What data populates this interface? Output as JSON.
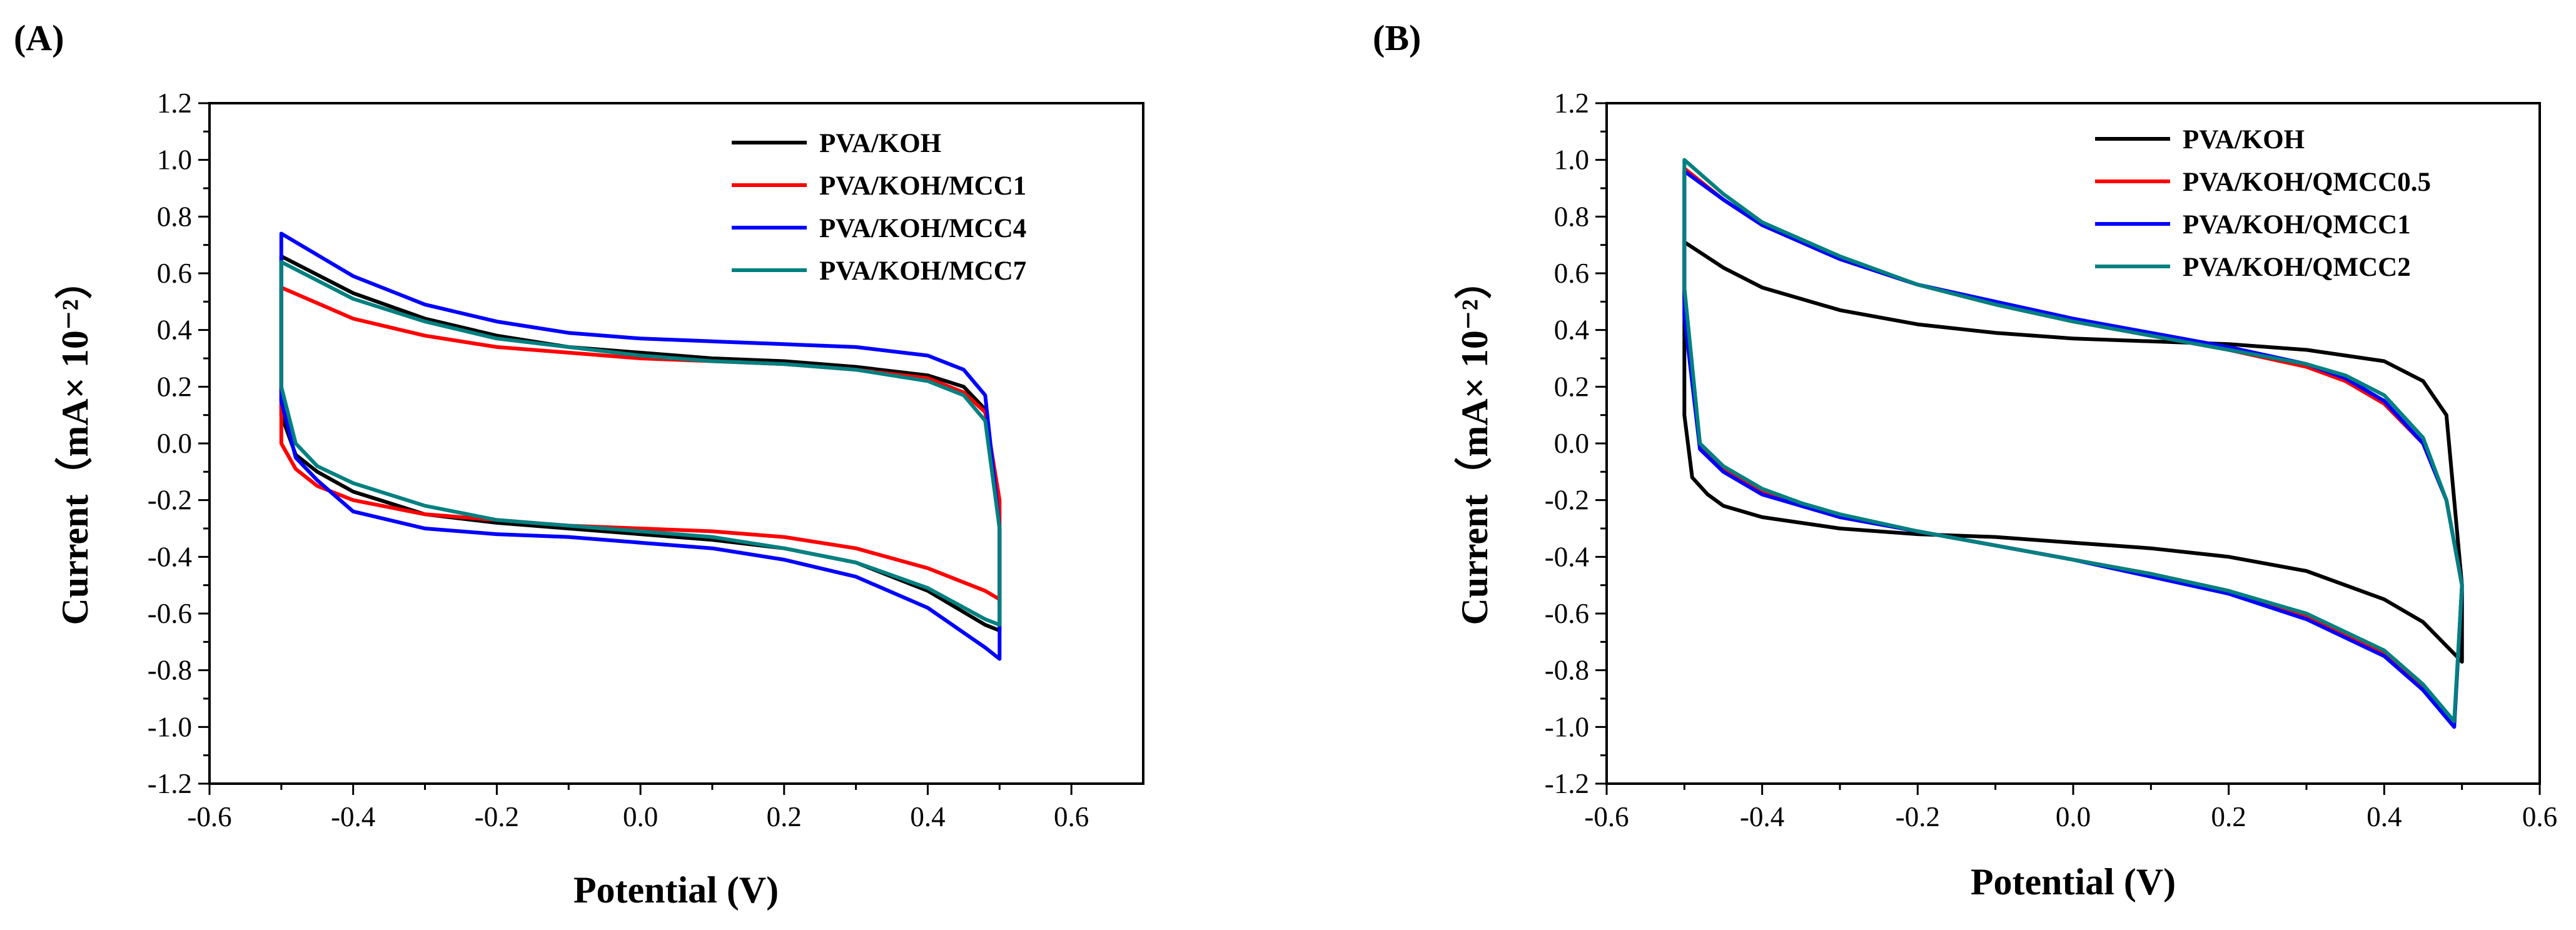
{
  "chart_data": [
    {
      "type": "line",
      "panel_label": "(A)",
      "xlabel": "Potential (V)",
      "ylabel": "Current（mA× 10⁻²）",
      "xlim": [
        -0.6,
        0.7
      ],
      "ylim": [
        -1.2,
        1.2
      ],
      "x_ticks": [
        -0.6,
        -0.4,
        -0.2,
        0.0,
        0.2,
        0.4,
        0.6
      ],
      "x_tick_labels": [
        "-0.6",
        "-0.4",
        "-0.2",
        "0.0",
        "0.2",
        "0.4",
        "0.6"
      ],
      "y_ticks": [
        1.2,
        1.0,
        0.8,
        0.6,
        0.4,
        0.2,
        0.0,
        -0.2,
        -0.4,
        -0.6,
        -0.8,
        -1.0,
        -1.2
      ],
      "y_tick_labels": [
        "1.2",
        "1.0",
        "0.8",
        "0.6",
        "0.4",
        "0.2",
        "0.0",
        "-0.2",
        "-0.4",
        "-0.6",
        "-0.8",
        "-1.0",
        "-1.2"
      ],
      "legend_position": "top-right",
      "series": [
        {
          "name": "PVA/KOH",
          "color": "#000000",
          "upper": {
            "x": [
              -0.5,
              -0.4,
              -0.3,
              -0.2,
              -0.1,
              0.0,
              0.1,
              0.2,
              0.3,
              0.4,
              0.45,
              0.48,
              0.5
            ],
            "y": [
              0.66,
              0.53,
              0.44,
              0.38,
              0.34,
              0.32,
              0.3,
              0.29,
              0.27,
              0.24,
              0.2,
              0.12,
              -0.3
            ]
          },
          "lower": {
            "x": [
              -0.5,
              -0.48,
              -0.45,
              -0.4,
              -0.3,
              -0.2,
              -0.1,
              0.0,
              0.1,
              0.2,
              0.3,
              0.4,
              0.48,
              0.5
            ],
            "y": [
              0.1,
              -0.04,
              -0.1,
              -0.17,
              -0.25,
              -0.28,
              -0.3,
              -0.32,
              -0.34,
              -0.37,
              -0.42,
              -0.52,
              -0.64,
              -0.66
            ]
          }
        },
        {
          "name": "PVA/KOH/MCC1",
          "color": "#ff0000",
          "upper": {
            "x": [
              -0.5,
              -0.4,
              -0.3,
              -0.2,
              -0.1,
              0.0,
              0.1,
              0.2,
              0.3,
              0.4,
              0.45,
              0.48,
              0.5
            ],
            "y": [
              0.55,
              0.44,
              0.38,
              0.34,
              0.32,
              0.3,
              0.29,
              0.28,
              0.26,
              0.23,
              0.18,
              0.11,
              -0.2
            ]
          },
          "lower": {
            "x": [
              -0.5,
              -0.48,
              -0.45,
              -0.4,
              -0.3,
              -0.2,
              -0.1,
              0.0,
              0.1,
              0.2,
              0.3,
              0.4,
              0.48,
              0.5
            ],
            "y": [
              0.0,
              -0.09,
              -0.15,
              -0.2,
              -0.25,
              -0.27,
              -0.29,
              -0.3,
              -0.31,
              -0.33,
              -0.37,
              -0.44,
              -0.52,
              -0.55
            ]
          }
        },
        {
          "name": "PVA/KOH/MCC4",
          "color": "#0000ff",
          "upper": {
            "x": [
              -0.5,
              -0.4,
              -0.3,
              -0.2,
              -0.1,
              0.0,
              0.1,
              0.2,
              0.3,
              0.4,
              0.45,
              0.48,
              0.5
            ],
            "y": [
              0.74,
              0.59,
              0.49,
              0.43,
              0.39,
              0.37,
              0.36,
              0.35,
              0.34,
              0.31,
              0.26,
              0.17,
              -0.3
            ]
          },
          "lower": {
            "x": [
              -0.5,
              -0.48,
              -0.45,
              -0.4,
              -0.3,
              -0.2,
              -0.1,
              0.0,
              0.1,
              0.2,
              0.3,
              0.4,
              0.48,
              0.5
            ],
            "y": [
              0.15,
              -0.05,
              -0.13,
              -0.24,
              -0.3,
              -0.32,
              -0.33,
              -0.35,
              -0.37,
              -0.41,
              -0.47,
              -0.58,
              -0.72,
              -0.76
            ]
          }
        },
        {
          "name": "PVA/KOH/MCC7",
          "color": "#008080",
          "upper": {
            "x": [
              -0.5,
              -0.4,
              -0.3,
              -0.2,
              -0.1,
              0.0,
              0.1,
              0.2,
              0.3,
              0.4,
              0.45,
              0.48,
              0.5
            ],
            "y": [
              0.64,
              0.51,
              0.43,
              0.37,
              0.34,
              0.31,
              0.29,
              0.28,
              0.26,
              0.22,
              0.17,
              0.08,
              -0.3
            ]
          },
          "lower": {
            "x": [
              -0.5,
              -0.48,
              -0.45,
              -0.4,
              -0.3,
              -0.2,
              -0.1,
              0.0,
              0.1,
              0.2,
              0.3,
              0.4,
              0.48,
              0.5
            ],
            "y": [
              0.2,
              0.0,
              -0.08,
              -0.14,
              -0.22,
              -0.27,
              -0.29,
              -0.31,
              -0.33,
              -0.37,
              -0.42,
              -0.51,
              -0.62,
              -0.64
            ]
          }
        }
      ]
    },
    {
      "type": "line",
      "panel_label": "(B)",
      "xlabel": "Potential (V)",
      "ylabel": "Current（mA× 10⁻²）",
      "xlim": [
        -0.6,
        0.6
      ],
      "ylim": [
        -1.2,
        1.2
      ],
      "x_ticks": [
        -0.6,
        -0.4,
        -0.2,
        0.0,
        0.2,
        0.4,
        0.6
      ],
      "x_tick_labels": [
        "-0.6",
        "-0.4",
        "-0.2",
        "0.0",
        "0.2",
        "0.4",
        "0.6"
      ],
      "y_ticks": [
        1.2,
        1.0,
        0.8,
        0.6,
        0.4,
        0.2,
        0.0,
        -0.2,
        -0.4,
        -0.6,
        -0.8,
        -1.0,
        -1.2
      ],
      "y_tick_labels": [
        "1.2",
        "1.0",
        "0.8",
        "0.6",
        "0.4",
        "0.2",
        "0.0",
        "-0.2",
        "-0.4",
        "-0.6",
        "-0.8",
        "-1.0",
        "-1.2"
      ],
      "legend_position": "top-right",
      "series": [
        {
          "name": "PVA/KOH",
          "color": "#000000",
          "upper": {
            "x": [
              -0.5,
              -0.45,
              -0.4,
              -0.3,
              -0.2,
              -0.1,
              0.0,
              0.1,
              0.2,
              0.3,
              0.4,
              0.45,
              0.48,
              0.5
            ],
            "y": [
              0.71,
              0.62,
              0.55,
              0.47,
              0.42,
              0.39,
              0.37,
              0.36,
              0.35,
              0.33,
              0.29,
              0.22,
              0.1,
              -0.5
            ]
          },
          "lower": {
            "x": [
              -0.5,
              -0.49,
              -0.47,
              -0.45,
              -0.4,
              -0.3,
              -0.2,
              -0.1,
              0.0,
              0.1,
              0.2,
              0.3,
              0.4,
              0.45,
              0.5
            ],
            "y": [
              0.1,
              -0.12,
              -0.18,
              -0.22,
              -0.26,
              -0.3,
              -0.32,
              -0.33,
              -0.35,
              -0.37,
              -0.4,
              -0.45,
              -0.55,
              -0.63,
              -0.77
            ]
          }
        },
        {
          "name": "PVA/KOH/QMCC0.5",
          "color": "#ff0000",
          "upper": {
            "x": [
              -0.5,
              -0.45,
              -0.4,
              -0.3,
              -0.2,
              -0.1,
              0.0,
              0.1,
              0.2,
              0.3,
              0.35,
              0.4,
              0.45,
              0.48,
              0.5
            ],
            "y": [
              0.97,
              0.86,
              0.77,
              0.65,
              0.56,
              0.49,
              0.43,
              0.38,
              0.33,
              0.27,
              0.22,
              0.14,
              0.0,
              -0.2,
              -0.5
            ]
          },
          "lower": {
            "x": [
              -0.5,
              -0.48,
              -0.45,
              -0.4,
              -0.35,
              -0.3,
              -0.2,
              -0.1,
              0.0,
              0.1,
              0.2,
              0.3,
              0.4,
              0.45,
              0.49
            ],
            "y": [
              0.5,
              0.0,
              -0.09,
              -0.17,
              -0.22,
              -0.26,
              -0.31,
              -0.36,
              -0.41,
              -0.46,
              -0.52,
              -0.61,
              -0.74,
              -0.86,
              -1.0
            ]
          }
        },
        {
          "name": "PVA/KOH/QMCC1",
          "color": "#0000ff",
          "upper": {
            "x": [
              -0.5,
              -0.45,
              -0.4,
              -0.3,
              -0.2,
              -0.1,
              0.0,
              0.1,
              0.2,
              0.3,
              0.35,
              0.4,
              0.45,
              0.48,
              0.5
            ],
            "y": [
              0.96,
              0.86,
              0.77,
              0.65,
              0.56,
              0.5,
              0.44,
              0.39,
              0.34,
              0.28,
              0.23,
              0.15,
              0.0,
              -0.2,
              -0.5
            ]
          },
          "lower": {
            "x": [
              -0.5,
              -0.48,
              -0.45,
              -0.4,
              -0.35,
              -0.3,
              -0.2,
              -0.1,
              0.0,
              0.1,
              0.2,
              0.3,
              0.4,
              0.45,
              0.49
            ],
            "y": [
              0.45,
              -0.02,
              -0.1,
              -0.18,
              -0.22,
              -0.26,
              -0.31,
              -0.36,
              -0.41,
              -0.47,
              -0.53,
              -0.62,
              -0.75,
              -0.87,
              -1.0
            ]
          }
        },
        {
          "name": "PVA/KOH/QMCC2",
          "color": "#008080",
          "upper": {
            "x": [
              -0.5,
              -0.45,
              -0.4,
              -0.3,
              -0.2,
              -0.1,
              0.0,
              0.1,
              0.2,
              0.3,
              0.35,
              0.4,
              0.45,
              0.48,
              0.5
            ],
            "y": [
              1.0,
              0.88,
              0.78,
              0.66,
              0.56,
              0.49,
              0.43,
              0.38,
              0.33,
              0.28,
              0.24,
              0.17,
              0.02,
              -0.2,
              -0.5
            ]
          },
          "lower": {
            "x": [
              -0.5,
              -0.48,
              -0.45,
              -0.4,
              -0.35,
              -0.3,
              -0.2,
              -0.1,
              0.0,
              0.1,
              0.2,
              0.3,
              0.4,
              0.45,
              0.49
            ],
            "y": [
              0.55,
              0.0,
              -0.08,
              -0.16,
              -0.21,
              -0.25,
              -0.31,
              -0.36,
              -0.41,
              -0.46,
              -0.52,
              -0.6,
              -0.73,
              -0.85,
              -0.98
            ]
          }
        }
      ]
    }
  ]
}
